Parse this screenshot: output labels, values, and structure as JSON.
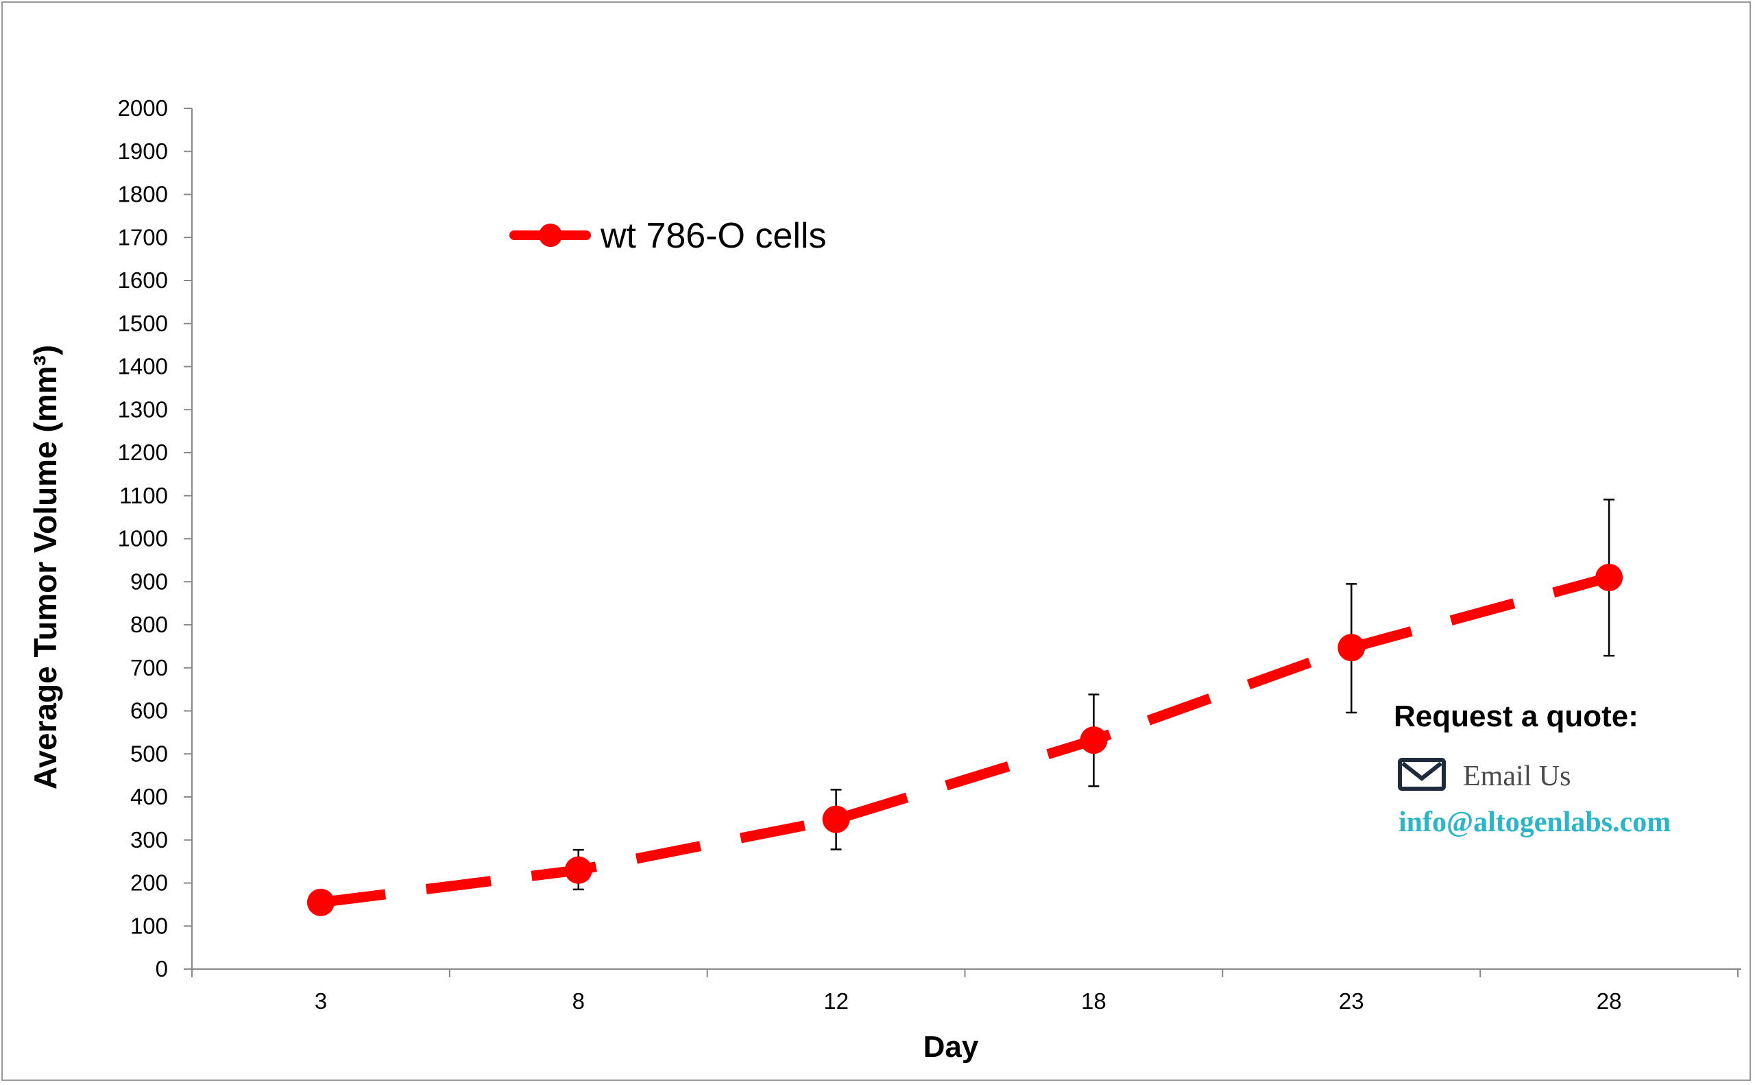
{
  "chart_data": {
    "type": "line",
    "title": "",
    "xlabel": "Day",
    "ylabel": "Average Tumor Volume (mm³)",
    "categories": [
      "3",
      "8",
      "12",
      "18",
      "23",
      "28"
    ],
    "ylim": [
      0,
      2000
    ],
    "yticks": [
      0,
      100,
      200,
      300,
      400,
      500,
      600,
      700,
      800,
      900,
      1000,
      1100,
      1200,
      1300,
      1400,
      1500,
      1600,
      1700,
      1800,
      1900,
      2000
    ],
    "grid": false,
    "legend_position": "top-left",
    "series": [
      {
        "name": "wt 786-O cells",
        "color": "#ff0000",
        "line_style": "dashed",
        "marker": "circle",
        "values": [
          155,
          230,
          348,
          532,
          747,
          910
        ],
        "error_low": [
          140,
          185,
          278,
          425,
          596,
          728
        ],
        "error_high": [
          170,
          277,
          417,
          638,
          895,
          1091
        ]
      }
    ]
  },
  "quote": {
    "title": "Request a quote:",
    "email_label": "Email Us",
    "email_icon": "envelope-icon",
    "email_address": "info@altogenlabs.com",
    "email_color": "#2bb5c9"
  }
}
